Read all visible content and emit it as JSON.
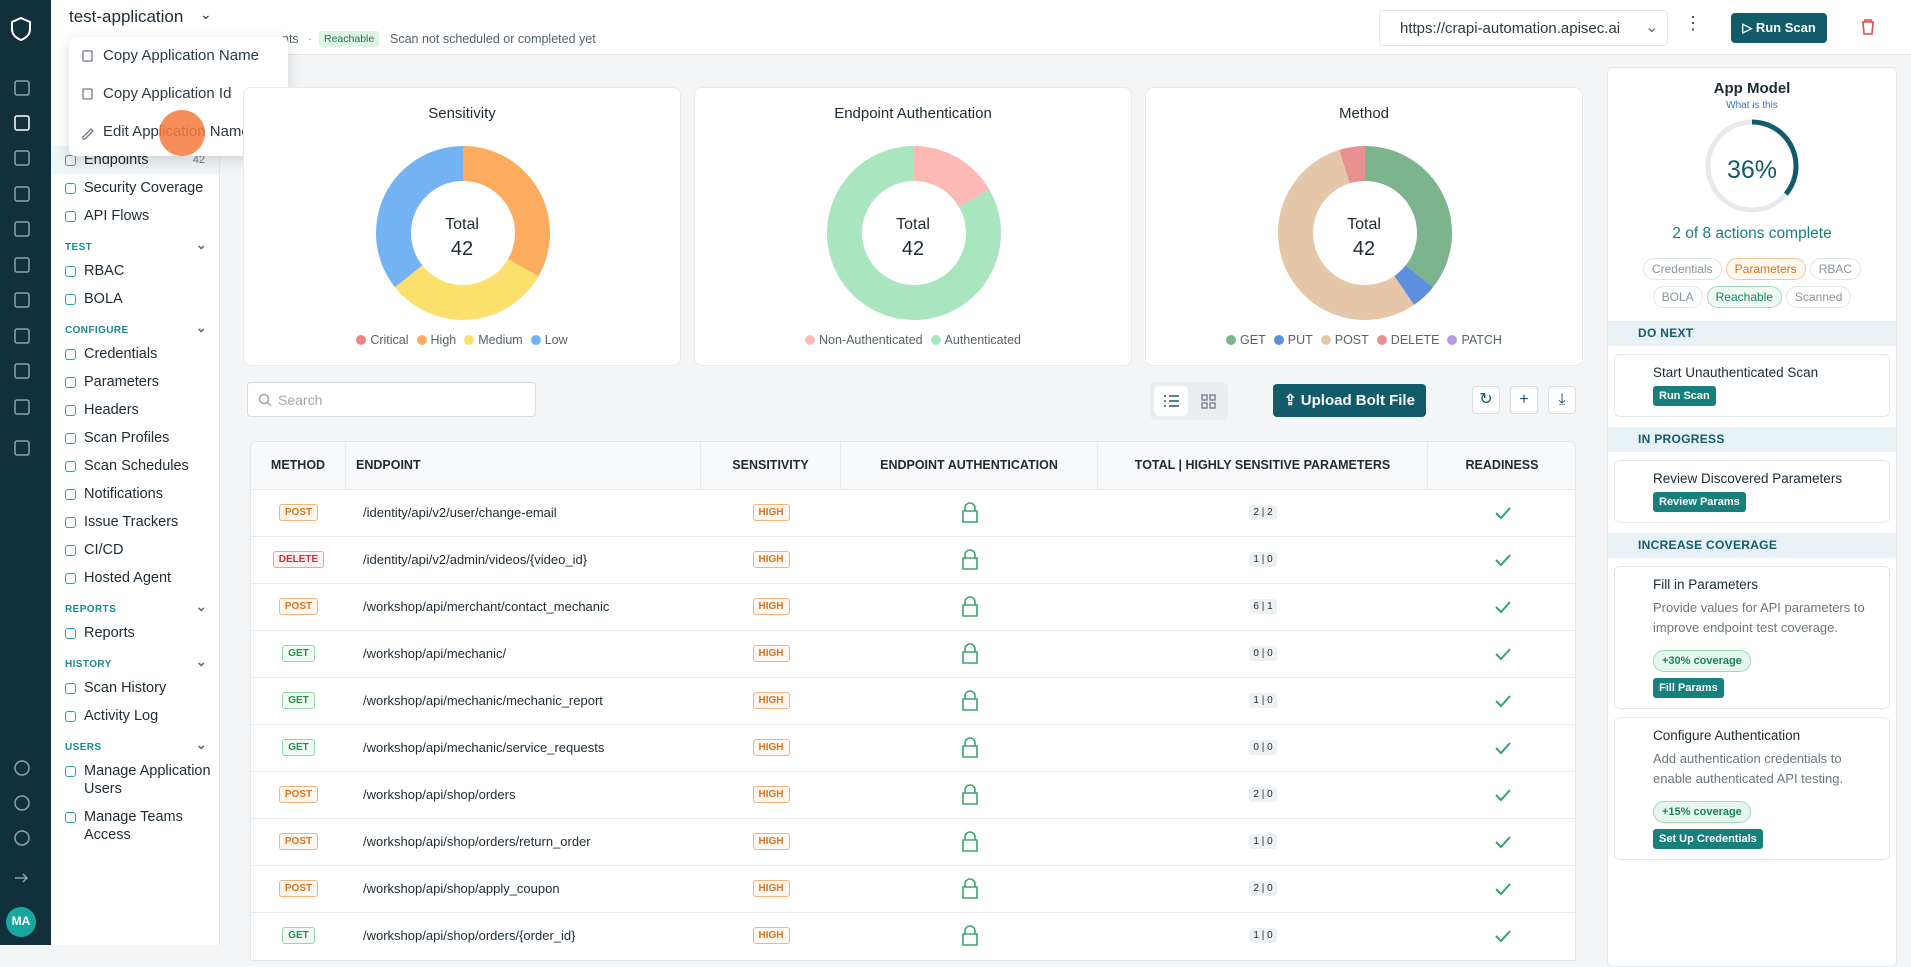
{
  "app_name": "test-application",
  "menu": [
    "Copy Application Name",
    "Copy Application Id",
    "Edit Application Name"
  ],
  "sidebar": {
    "sections": [
      {
        "items": [
          {
            "label": "Endpoints",
            "count": "42"
          },
          {
            "label": "Security Coverage"
          },
          {
            "label": "API Flows"
          }
        ]
      },
      {
        "title": "TEST",
        "items": [
          {
            "label": "RBAC"
          },
          {
            "label": "BOLA"
          }
        ]
      },
      {
        "title": "CONFIGURE",
        "items": [
          {
            "label": "Credentials"
          },
          {
            "label": "Parameters"
          },
          {
            "label": "Headers"
          },
          {
            "label": "Scan Profiles"
          },
          {
            "label": "Scan Schedules"
          },
          {
            "label": "Notifications"
          },
          {
            "label": "Issue Trackers"
          },
          {
            "label": "CI/CD"
          },
          {
            "label": "Hosted Agent"
          }
        ]
      },
      {
        "title": "REPORTS",
        "items": [
          {
            "label": "Reports"
          }
        ]
      },
      {
        "title": "HISTORY",
        "items": [
          {
            "label": "Scan History"
          },
          {
            "label": "Activity Log"
          }
        ]
      },
      {
        "title": "USERS",
        "items": [
          {
            "label": "Manage Application Users"
          },
          {
            "label": "Manage Teams Access"
          }
        ]
      }
    ],
    "user_initials": "MA"
  },
  "topbar": {
    "breadcrumb": "nts",
    "status_badge": "Reachable",
    "status_text": "Scan not scheduled or completed yet",
    "url": "https://crapi-automation.apisec.ai",
    "run_button": "Run Scan"
  },
  "charts": [
    {
      "type": "pie",
      "title": "Sensitivity",
      "center_label": "Total",
      "total": 42,
      "categories": [
        "Critical",
        "High",
        "Medium",
        "Low"
      ],
      "values": [
        0,
        14,
        13,
        15
      ],
      "colors": [
        "#ef8585",
        "#fdab5e",
        "#fbe16b",
        "#73b3f4"
      ]
    },
    {
      "type": "pie",
      "title": "Endpoint Authentication",
      "center_label": "Total",
      "total": 42,
      "categories": [
        "Non-Authenticated",
        "Authenticated"
      ],
      "values": [
        7,
        35
      ],
      "colors": [
        "#fdb9b5",
        "#a9e6bf"
      ]
    },
    {
      "type": "pie",
      "title": "Method",
      "center_label": "Total",
      "total": 42,
      "categories": [
        "GET",
        "PUT",
        "POST",
        "DELETE",
        "PATCH"
      ],
      "values": [
        15,
        2,
        23,
        2,
        0
      ],
      "colors": [
        "#7cb48d",
        "#5c8fe0",
        "#e6c6a8",
        "#e88f8f",
        "#b99be0"
      ]
    }
  ],
  "toolbar": {
    "search_placeholder": "Search",
    "upload_button": "Upload Bolt File"
  },
  "table": {
    "columns": [
      "METHOD",
      "ENDPOINT",
      "SENSITIVITY",
      "ENDPOINT AUTHENTICATION",
      "TOTAL | HIGHLY SENSITIVE PARAMETERS",
      "READINESS"
    ],
    "rows": [
      [
        "POST",
        "/identity/api/v2/user/change-email",
        "HIGH",
        "2 | 2"
      ],
      [
        "DELETE",
        "/identity/api/v2/admin/videos/{video_id}",
        "HIGH",
        "1 | 0"
      ],
      [
        "POST",
        "/workshop/api/merchant/contact_mechanic",
        "HIGH",
        "6 | 1"
      ],
      [
        "GET",
        "/workshop/api/mechanic/",
        "HIGH",
        "0 | 0"
      ],
      [
        "GET",
        "/workshop/api/mechanic/mechanic_report",
        "HIGH",
        "1 | 0"
      ],
      [
        "GET",
        "/workshop/api/mechanic/service_requests",
        "HIGH",
        "0 | 0"
      ],
      [
        "POST",
        "/workshop/api/shop/orders",
        "HIGH",
        "2 | 0"
      ],
      [
        "POST",
        "/workshop/api/shop/orders/return_order",
        "HIGH",
        "1 | 0"
      ],
      [
        "POST",
        "/workshop/api/shop/apply_coupon",
        "HIGH",
        "2 | 0"
      ],
      [
        "GET",
        "/workshop/api/shop/orders/{order_id}",
        "HIGH",
        "1 | 0"
      ]
    ]
  },
  "app_model": {
    "title": "App Model",
    "link": "What is this",
    "progress": {
      "value": 36,
      "label": "36%"
    },
    "summary": "2 of 8 actions complete",
    "chips": [
      "Credentials",
      "Parameters",
      "RBAC",
      "BOLA",
      "Reachable",
      "Scanned"
    ],
    "sections": [
      {
        "title": "DO NEXT",
        "cards": [
          {
            "title": "Start Unauthenticated Scan",
            "button": "Run Scan"
          }
        ]
      },
      {
        "title": "IN PROGRESS",
        "cards": [
          {
            "title": "Review Discovered Parameters",
            "button": "Review Params"
          }
        ]
      },
      {
        "title": "INCREASE COVERAGE",
        "cards": [
          {
            "title": "Fill in Parameters",
            "description": "Provide values for API parameters to improve endpoint test coverage.",
            "pill": "+30% coverage",
            "button": "Fill Params"
          },
          {
            "title": "Configure Authentication",
            "description": "Add authentication credentials to enable authenticated API testing.",
            "pill": "+15% coverage",
            "button": "Set Up Credentials"
          }
        ]
      }
    ]
  }
}
